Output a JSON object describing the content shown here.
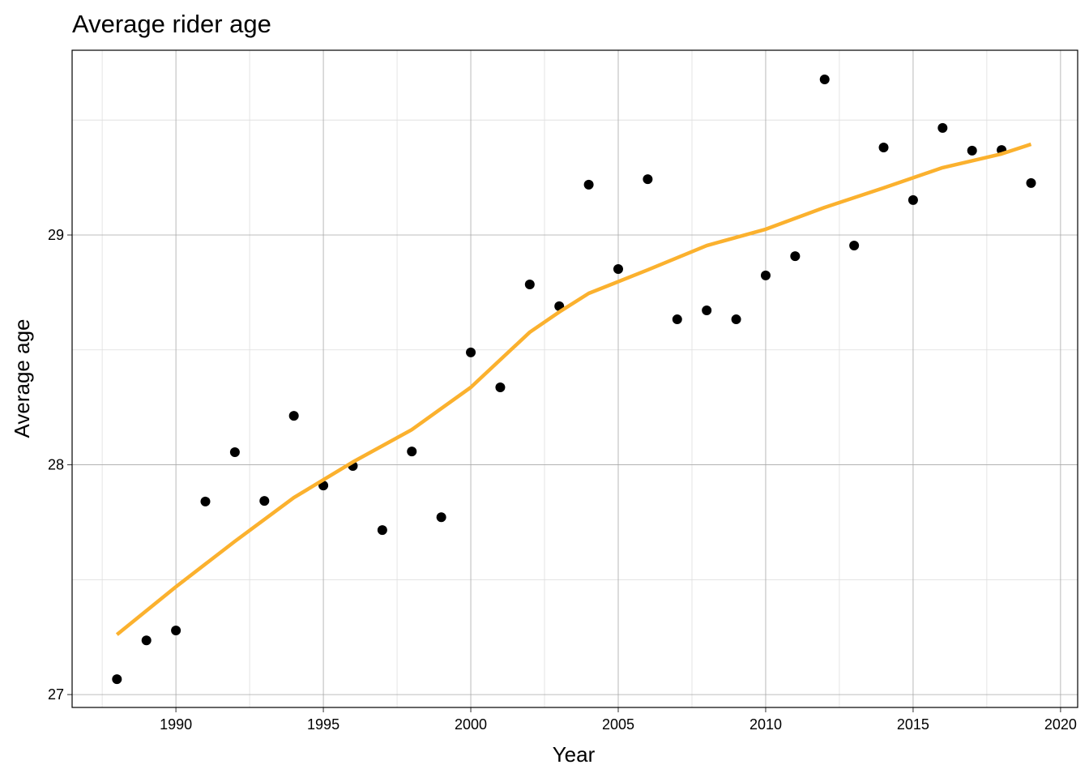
{
  "chart_data": {
    "type": "scatter",
    "title": "Average rider age",
    "x_label": "Year",
    "y_label": "Average age",
    "x": [
      1988,
      1989,
      1990,
      1991,
      1992,
      1993,
      1994,
      1995,
      1996,
      1997,
      1998,
      1999,
      2000,
      2001,
      2002,
      2003,
      2004,
      2005,
      2006,
      2007,
      2008,
      2009,
      2010,
      2011,
      2012,
      2013,
      2014,
      2015,
      2016,
      2017,
      2018,
      2019
    ],
    "values": [
      27.067,
      27.236,
      27.279,
      27.84,
      28.055,
      27.843,
      28.213,
      27.91,
      27.995,
      27.716,
      28.058,
      27.772,
      28.489,
      28.337,
      28.785,
      28.69,
      29.219,
      28.852,
      29.243,
      28.633,
      28.672,
      28.633,
      28.824,
      28.908,
      29.677,
      28.954,
      29.381,
      29.152,
      29.466,
      29.367,
      29.37,
      29.226
    ],
    "color": "#000000",
    "trend": {
      "x": [
        1988,
        1990,
        1992,
        1994,
        1996,
        1998,
        2000,
        2002,
        2003,
        2004,
        2006,
        2008,
        2010,
        2012,
        2014,
        2016,
        2018,
        2019
      ],
      "values": [
        27.261,
        27.469,
        27.667,
        27.857,
        28.012,
        28.153,
        28.337,
        28.577,
        28.665,
        28.746,
        28.848,
        28.954,
        29.025,
        29.12,
        29.205,
        29.293,
        29.353,
        29.395
      ],
      "color": "#fbb12e"
    },
    "xlim": [
      1986.48,
      2020.58
    ],
    "ylim": [
      26.944,
      29.804
    ],
    "xticks": [
      1990,
      1995,
      2000,
      2005,
      2010,
      2015,
      2020
    ],
    "yticks": [
      27,
      28,
      29
    ],
    "minor_xticks": [
      1987.5,
      1992.5,
      1997.5,
      2002.5,
      2007.5,
      2012.5,
      2017.5
    ],
    "minor_yticks": [
      27.5,
      28.5,
      29.5
    ],
    "grid": true
  }
}
